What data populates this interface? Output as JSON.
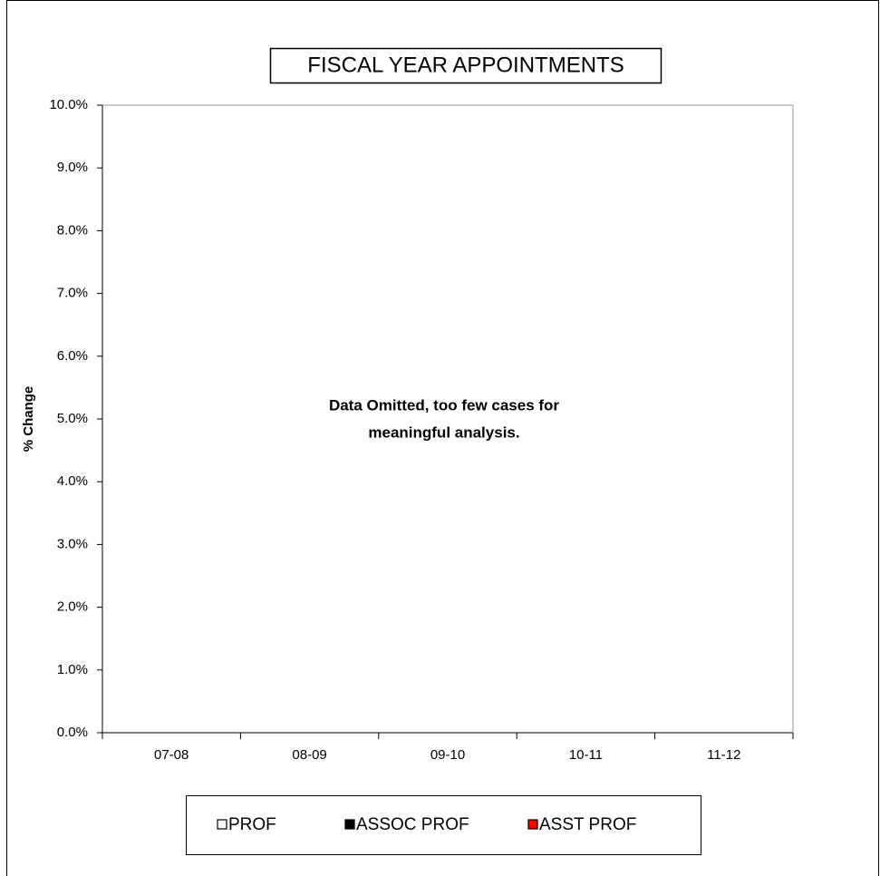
{
  "chart_data": {
    "type": "bar",
    "title": "FISCAL YEAR APPOINTMENTS",
    "y_label": "% Change",
    "annotation": [
      "Data Omitted, too few cases for",
      "meaningful analysis."
    ],
    "categories": [
      "07-08",
      "08-09",
      "09-10",
      "10-11",
      "11-12"
    ],
    "series": [
      {
        "name": "PROF",
        "color": "#ffffff",
        "values": [
          null,
          null,
          null,
          null,
          null
        ]
      },
      {
        "name": "ASSOC PROF",
        "color": "#000000",
        "values": [
          null,
          null,
          null,
          null,
          null
        ]
      },
      {
        "name": "ASST PROF",
        "color": "#ff0000",
        "values": [
          null,
          null,
          null,
          null,
          null
        ]
      }
    ],
    "ylim": [
      0,
      10
    ],
    "yticks": [
      {
        "value": 0,
        "label": "0.0%"
      },
      {
        "value": 1,
        "label": "1.0%"
      },
      {
        "value": 2,
        "label": "2.0%"
      },
      {
        "value": 3,
        "label": "3.0%"
      },
      {
        "value": 4,
        "label": "4.0%"
      },
      {
        "value": 5,
        "label": "5.0%"
      },
      {
        "value": 6,
        "label": "6.0%"
      },
      {
        "value": 7,
        "label": "7.0%"
      },
      {
        "value": 8,
        "label": "8.0%"
      },
      {
        "value": 9,
        "label": "9.0%"
      },
      {
        "value": 10,
        "label": "10.0%"
      }
    ],
    "grid": false,
    "legend": "bottom"
  }
}
